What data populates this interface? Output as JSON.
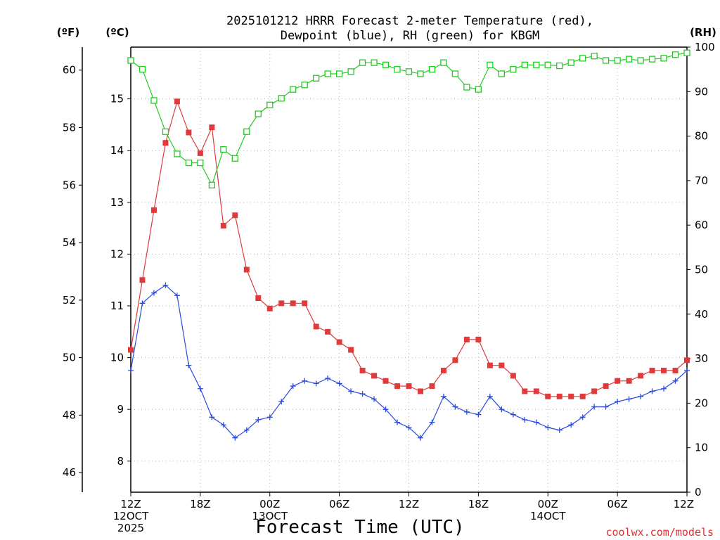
{
  "title_line1": "2025101212 HRRR Forecast 2-meter Temperature (red),",
  "title_line2": "Dewpoint (blue), RH (green) for KBGM",
  "xlabel": "Forecast Time (UTC)",
  "credit": "coolwx.com/models",
  "units": {
    "fahrenheit": "(ºF)",
    "celsius": "(ºC)",
    "rh": "(RH)"
  },
  "colors": {
    "temperature": "#e03a3a",
    "dewpoint": "#2a4be0",
    "rh": "#22cc22"
  },
  "chart_data": {
    "type": "line",
    "title": "2025101212 HRRR Forecast 2-meter Temperature (red), Dewpoint (blue), RH (green) for KBGM",
    "xlabel": "Forecast Time (UTC)",
    "x_hours": [
      0,
      1,
      2,
      3,
      4,
      5,
      6,
      7,
      8,
      9,
      10,
      11,
      12,
      13,
      14,
      15,
      16,
      17,
      18,
      19,
      20,
      21,
      22,
      23,
      24,
      25,
      26,
      27,
      28,
      29,
      30,
      31,
      32,
      33,
      34,
      35,
      36,
      37,
      38,
      39,
      40,
      41,
      42,
      43,
      44,
      45,
      46,
      47,
      48
    ],
    "x_ticks": [
      {
        "hour": 0,
        "lines": [
          "12Z",
          "12OCT",
          "2025"
        ]
      },
      {
        "hour": 6,
        "lines": [
          "18Z"
        ]
      },
      {
        "hour": 12,
        "lines": [
          "00Z",
          "13OCT"
        ]
      },
      {
        "hour": 18,
        "lines": [
          "06Z"
        ]
      },
      {
        "hour": 24,
        "lines": [
          "12Z"
        ]
      },
      {
        "hour": 30,
        "lines": [
          "18Z"
        ]
      },
      {
        "hour": 36,
        "lines": [
          "00Z",
          "14OCT"
        ]
      },
      {
        "hour": 42,
        "lines": [
          "06Z"
        ]
      },
      {
        "hour": 48,
        "lines": [
          "12Z"
        ]
      }
    ],
    "y_left_f": {
      "ticks": [
        46,
        48,
        50,
        52,
        54,
        56,
        58,
        60
      ]
    },
    "y_left_c": {
      "ticks": [
        8,
        9,
        10,
        11,
        12,
        13,
        14,
        15
      ],
      "range": [
        7.4,
        16.0
      ]
    },
    "y_right_rh": {
      "ticks": [
        0,
        10,
        20,
        30,
        40,
        50,
        60,
        70,
        80,
        90,
        100
      ],
      "range": [
        0,
        100
      ]
    },
    "grid": true,
    "series": [
      {
        "name": "Temperature",
        "axis": "celsius",
        "values": [
          10.15,
          11.5,
          12.85,
          14.15,
          14.95,
          14.35,
          13.95,
          14.45,
          12.55,
          12.75,
          11.7,
          11.15,
          10.95,
          11.05,
          11.05,
          11.05,
          10.6,
          10.5,
          10.3,
          10.15,
          9.75,
          9.65,
          9.55,
          9.45,
          9.45,
          9.35,
          9.45,
          9.75,
          9.95,
          10.35,
          10.35,
          9.85,
          9.85,
          9.65,
          9.35,
          9.35,
          9.25,
          9.25,
          9.25,
          9.25,
          9.35,
          9.45,
          9.55,
          9.55,
          9.65,
          9.75,
          9.75,
          9.75,
          9.95
        ]
      },
      {
        "name": "Dewpoint",
        "axis": "celsius",
        "values": [
          9.75,
          11.05,
          11.25,
          11.4,
          11.2,
          9.85,
          9.4,
          8.85,
          8.7,
          8.45,
          8.6,
          8.8,
          8.85,
          9.15,
          9.45,
          9.55,
          9.5,
          9.6,
          9.5,
          9.35,
          9.3,
          9.2,
          9.0,
          8.75,
          8.65,
          8.45,
          8.75,
          9.25,
          9.05,
          8.95,
          8.9,
          9.25,
          9.0,
          8.9,
          8.8,
          8.75,
          8.65,
          8.6,
          8.7,
          8.85,
          9.05,
          9.05,
          9.15,
          9.2,
          9.25,
          9.35,
          9.4,
          9.55,
          9.75
        ]
      },
      {
        "name": "RH",
        "axis": "rh",
        "values": [
          97,
          95,
          88,
          81,
          76,
          74,
          74,
          69,
          77,
          75,
          81,
          85,
          87,
          88.5,
          90.5,
          91.5,
          93,
          94,
          94,
          94.5,
          96.5,
          96.5,
          96,
          95,
          94.5,
          94,
          95,
          96.5,
          94,
          91,
          90.5,
          96,
          94,
          95,
          96,
          96,
          96,
          95.8,
          96.5,
          97.5,
          98,
          97,
          97,
          97.3,
          97,
          97.3,
          97.5,
          98.3,
          98.7
        ]
      }
    ]
  }
}
